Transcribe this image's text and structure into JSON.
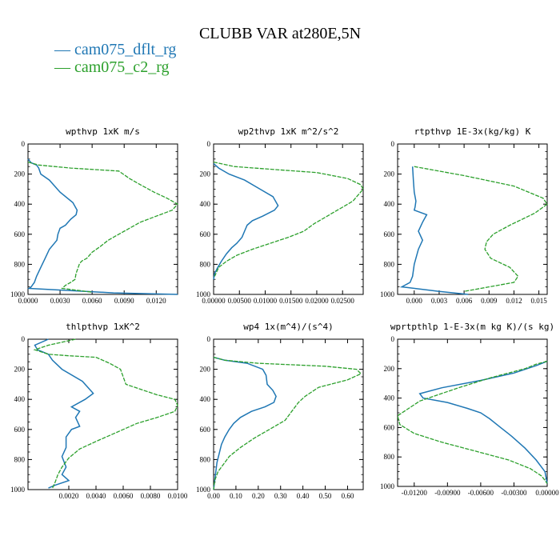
{
  "figure": {
    "title": "CLUBB VAR at280E,5N",
    "legend": [
      {
        "label": "— cam075_dflt_rg",
        "color": "#1f77b4"
      },
      {
        "label": "— cam075_c2_rg",
        "color": "#2ca02c"
      }
    ]
  },
  "chart_data": [
    {
      "type": "line",
      "title": "wpthvp  1xK m/s",
      "xlim": [
        0.0,
        0.014
      ],
      "ylim": [
        1000,
        0
      ],
      "xticks": [
        0.0,
        0.003,
        0.006,
        0.009,
        0.012
      ],
      "xtick_labels": [
        "0.0000",
        "0.0030",
        "0.0060",
        "0.0090",
        "0.0120"
      ],
      "yticks": [
        0,
        200,
        400,
        600,
        800,
        1000
      ],
      "series": [
        {
          "name": "cam075_dflt_rg",
          "color": "#1f77b4",
          "x": [
            0.0,
            0.0003,
            0.0008,
            0.001,
            0.0012,
            0.002,
            0.003,
            0.0042,
            0.0046,
            0.0045,
            0.004,
            0.0035,
            0.003,
            0.0028,
            0.0027,
            0.002,
            0.0016,
            0.0012,
            0.0008,
            0.0006,
            0.0004,
            0.0003,
            0.0001,
            0.008,
            0.014
          ],
          "y": [
            100,
            125,
            140,
            160,
            200,
            240,
            320,
            390,
            440,
            470,
            500,
            540,
            560,
            600,
            640,
            700,
            760,
            820,
            880,
            920,
            940,
            950,
            960,
            990,
            1000
          ]
        },
        {
          "name": "cam075_c2_rg",
          "color": "#2ca02c",
          "x": [
            0.0,
            0.001,
            0.004,
            0.0085,
            0.0095,
            0.0105,
            0.0118,
            0.013,
            0.014,
            0.0135,
            0.012,
            0.0105,
            0.0095,
            0.0085,
            0.0075,
            0.0068,
            0.006,
            0.0055,
            0.005,
            0.0048,
            0.0047,
            0.0045,
            0.0044,
            0.004,
            0.0035,
            0.0032,
            0.006
          ],
          "y": [
            120,
            140,
            160,
            180,
            230,
            270,
            320,
            360,
            400,
            440,
            480,
            520,
            560,
            600,
            640,
            680,
            720,
            760,
            780,
            800,
            820,
            860,
            900,
            920,
            940,
            960,
            985
          ]
        }
      ]
    },
    {
      "type": "line",
      "title": "wp2thvp  1xK m^2/s^2",
      "xlim": [
        0.0,
        0.029
      ],
      "ylim": [
        1000,
        0
      ],
      "xticks": [
        0.0,
        0.005,
        0.01,
        0.015,
        0.02,
        0.025
      ],
      "xtick_labels": [
        "0.00000",
        "0.00500",
        "0.01000",
        "0.01500",
        "0.02000",
        "0.02500"
      ],
      "yticks": [
        0,
        200,
        400,
        600,
        800,
        1000
      ],
      "series": [
        {
          "name": "cam075_dflt_rg",
          "color": "#1f77b4",
          "x": [
            0.0,
            0.001,
            0.003,
            0.006,
            0.009,
            0.0115,
            0.0125,
            0.0118,
            0.0095,
            0.0075,
            0.0065,
            0.006,
            0.0055,
            0.0045,
            0.0035,
            0.0025,
            0.0015,
            0.0008,
            0.0002,
            0.0
          ],
          "y": [
            130,
            160,
            200,
            240,
            300,
            350,
            410,
            440,
            480,
            510,
            540,
            580,
            620,
            660,
            690,
            730,
            780,
            820,
            860,
            900
          ]
        },
        {
          "name": "cam075_c2_rg",
          "color": "#2ca02c",
          "x": [
            0.0,
            0.004,
            0.012,
            0.02,
            0.026,
            0.0285,
            0.029,
            0.027,
            0.025,
            0.0235,
            0.021,
            0.0195,
            0.0175,
            0.0145,
            0.011,
            0.0075,
            0.0045,
            0.0025,
            0.001,
            0.0002
          ],
          "y": [
            120,
            150,
            170,
            190,
            230,
            270,
            300,
            380,
            420,
            450,
            500,
            530,
            580,
            620,
            660,
            700,
            740,
            780,
            820,
            880
          ]
        }
      ]
    },
    {
      "type": "line",
      "title": "rtpthvp  1E-3x(kg/kg) K",
      "xlim": [
        -0.002,
        0.016
      ],
      "ylim": [
        1000,
        0
      ],
      "xticks": [
        0.0,
        0.003,
        0.006,
        0.009,
        0.012,
        0.015
      ],
      "xtick_labels": [
        "0.000",
        "0.003",
        "0.006",
        "0.009",
        "0.012",
        "0.015"
      ],
      "yticks": [
        0,
        200,
        400,
        600,
        800,
        1000
      ],
      "series": [
        {
          "name": "cam075_dflt_rg",
          "color": "#1f77b4",
          "x": [
            -0.0002,
            -0.0001,
            0.0,
            0.0002,
            0.0001,
            0.0,
            0.0015,
            0.001,
            0.0005,
            0.001,
            0.0005,
            0.0,
            -0.0002,
            -0.0005,
            -0.0015,
            0.003,
            0.0065
          ],
          "y": [
            150,
            240,
            320,
            380,
            420,
            440,
            470,
            520,
            580,
            640,
            700,
            800,
            880,
            920,
            950,
            980,
            1000
          ]
        },
        {
          "name": "cam075_c2_rg",
          "color": "#2ca02c",
          "x": [
            0.0,
            0.002,
            0.006,
            0.012,
            0.0155,
            0.016,
            0.0145,
            0.0115,
            0.0095,
            0.0087,
            0.0085,
            0.0092,
            0.0115,
            0.0125,
            0.012,
            0.008,
            0.006
          ],
          "y": [
            150,
            170,
            210,
            280,
            360,
            400,
            460,
            540,
            600,
            650,
            700,
            760,
            820,
            880,
            920,
            960,
            980
          ]
        }
      ]
    },
    {
      "type": "line",
      "title": "thlpthvp  1xK^2",
      "xlim": [
        -0.001,
        0.01
      ],
      "ylim": [
        1000,
        0
      ],
      "xticks": [
        0.002,
        0.004,
        0.006,
        0.008,
        0.01
      ],
      "xtick_labels": [
        "0.0020",
        "0.0040",
        "0.0060",
        "0.0080",
        "0.0100"
      ],
      "yticks": [
        0,
        200,
        400,
        600,
        800,
        1000
      ],
      "series": [
        {
          "name": "cam075_dflt_rg",
          "color": "#1f77b4",
          "x": [
            0.0005,
            -0.0005,
            -0.0003,
            0.0005,
            0.0008,
            0.0015,
            0.003,
            0.0038,
            0.0032,
            0.0022,
            0.0028,
            0.0025,
            0.0028,
            0.0022,
            0.0018,
            0.0018,
            0.0015,
            0.0018,
            0.0015,
            0.002,
            0.001,
            0.0005
          ],
          "y": [
            0,
            40,
            70,
            100,
            140,
            200,
            280,
            360,
            400,
            450,
            480,
            520,
            580,
            600,
            650,
            720,
            780,
            850,
            900,
            940,
            970,
            990
          ]
        },
        {
          "name": "cam075_c2_rg",
          "color": "#2ca02c",
          "x": [
            0.0025,
            0.0005,
            -0.0005,
            0.0005,
            0.002,
            0.004,
            0.005,
            0.0058,
            0.0062,
            0.0085,
            0.0098,
            0.01,
            0.0098,
            0.0085,
            0.007,
            0.0055,
            0.004,
            0.0028,
            0.002,
            0.0015,
            0.0012,
            0.001,
            0.0008
          ],
          "y": [
            0,
            40,
            70,
            100,
            110,
            120,
            160,
            200,
            300,
            370,
            400,
            440,
            480,
            520,
            560,
            620,
            680,
            730,
            790,
            850,
            900,
            950,
            990
          ]
        }
      ]
    },
    {
      "type": "line",
      "title": "wp4  1x(m^4)/(s^4)",
      "xlim": [
        0.0,
        0.67
      ],
      "ylim": [
        1000,
        0
      ],
      "xticks": [
        0.0,
        0.1,
        0.2,
        0.3,
        0.4,
        0.5,
        0.6
      ],
      "xtick_labels": [
        "0.00",
        "0.10",
        "0.20",
        "0.30",
        "0.40",
        "0.50",
        "0.60"
      ],
      "yticks": [
        0,
        200,
        400,
        600,
        800,
        1000
      ],
      "series": [
        {
          "name": "cam075_dflt_rg",
          "color": "#1f77b4",
          "x": [
            0.0,
            0.05,
            0.15,
            0.22,
            0.235,
            0.24,
            0.265,
            0.28,
            0.27,
            0.23,
            0.17,
            0.12,
            0.09,
            0.07,
            0.05,
            0.035,
            0.025,
            0.015,
            0.01,
            0.005,
            0.0
          ],
          "y": [
            120,
            140,
            160,
            200,
            240,
            300,
            340,
            380,
            420,
            450,
            480,
            520,
            560,
            600,
            650,
            700,
            760,
            820,
            880,
            940,
            1000
          ]
        },
        {
          "name": "cam075_c2_rg",
          "color": "#2ca02c",
          "x": [
            0.0,
            0.05,
            0.2,
            0.5,
            0.64,
            0.66,
            0.6,
            0.47,
            0.41,
            0.38,
            0.35,
            0.32,
            0.25,
            0.18,
            0.12,
            0.07,
            0.05,
            0.02,
            0.005,
            0.0
          ],
          "y": [
            120,
            140,
            160,
            180,
            200,
            230,
            270,
            320,
            380,
            420,
            480,
            540,
            600,
            660,
            720,
            780,
            820,
            880,
            940,
            1000
          ]
        }
      ]
    },
    {
      "type": "line",
      "title": "wprtpthlp  1-E-3x(m kg K)/(s kg)",
      "xlim": [
        -0.0135,
        0.0
      ],
      "ylim": [
        1000,
        0
      ],
      "xticks": [
        -0.012,
        -0.009,
        -0.006,
        -0.003,
        0.0
      ],
      "xtick_labels": [
        "-0.01200",
        "-0.00900",
        "-0.00600",
        "-0.00300",
        "0.00000"
      ],
      "yticks": [
        0,
        200,
        400,
        600,
        800,
        1000
      ],
      "series": [
        {
          "name": "cam075_dflt_rg",
          "color": "#1f77b4",
          "x": [
            0.0,
            -0.001,
            -0.003,
            -0.006,
            -0.0095,
            -0.0115,
            -0.0112,
            -0.009,
            -0.0072,
            -0.006,
            -0.0052,
            -0.0042,
            -0.0032,
            -0.002,
            -0.001,
            -0.0002,
            0.0
          ],
          "y": [
            150,
            180,
            230,
            280,
            330,
            370,
            400,
            430,
            470,
            500,
            540,
            600,
            660,
            740,
            820,
            900,
            980
          ]
        },
        {
          "name": "cam075_c2_rg",
          "color": "#2ca02c",
          "x": [
            0.0,
            -0.001,
            -0.002,
            -0.005,
            -0.008,
            -0.0115,
            -0.0135,
            -0.0133,
            -0.012,
            -0.0095,
            -0.0065,
            -0.0035,
            -0.0015,
            -0.0005,
            0.0
          ],
          "y": [
            150,
            170,
            200,
            260,
            330,
            420,
            520,
            580,
            640,
            700,
            760,
            820,
            880,
            930,
            980
          ]
        }
      ]
    }
  ]
}
